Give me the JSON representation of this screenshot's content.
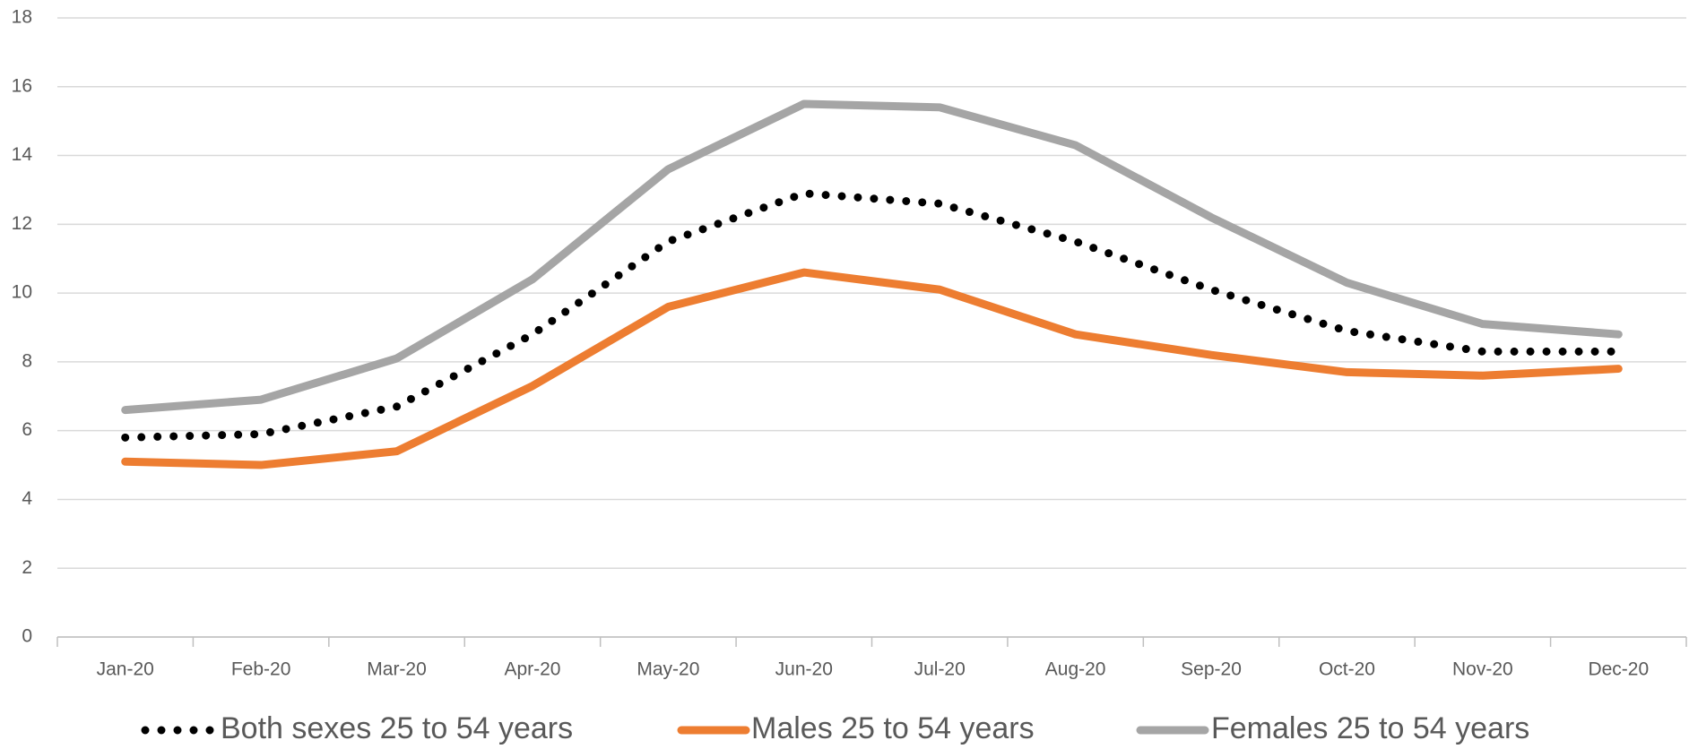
{
  "chart_data": {
    "type": "line",
    "categories": [
      "Jan-20",
      "Feb-20",
      "Mar-20",
      "Apr-20",
      "May-20",
      "Jun-20",
      "Jul-20",
      "Aug-20",
      "Sep-20",
      "Oct-20",
      "Nov-20",
      "Dec-20"
    ],
    "series": [
      {
        "name": "Both sexes 25 to 54 years",
        "color": "#000000",
        "style": "dotted",
        "values": [
          5.8,
          5.9,
          6.7,
          8.8,
          11.5,
          12.9,
          12.6,
          11.5,
          10.1,
          8.9,
          8.3,
          8.3
        ]
      },
      {
        "name": "Males 25 to 54 years",
        "color": "#ed7d31",
        "style": "solid",
        "values": [
          5.1,
          5.0,
          5.4,
          7.3,
          9.6,
          10.6,
          10.1,
          8.8,
          8.2,
          7.7,
          7.6,
          7.8
        ]
      },
      {
        "name": "Females 25 to 54 years",
        "color": "#a5a5a5",
        "style": "solid",
        "values": [
          6.6,
          6.9,
          8.1,
          10.4,
          13.6,
          15.5,
          15.4,
          14.3,
          12.2,
          10.3,
          9.1,
          8.8
        ]
      }
    ],
    "ylim": [
      0,
      18
    ],
    "yticks": [
      0,
      2,
      4,
      6,
      8,
      10,
      12,
      14,
      16,
      18
    ],
    "grid": true,
    "legend": "bottom"
  }
}
